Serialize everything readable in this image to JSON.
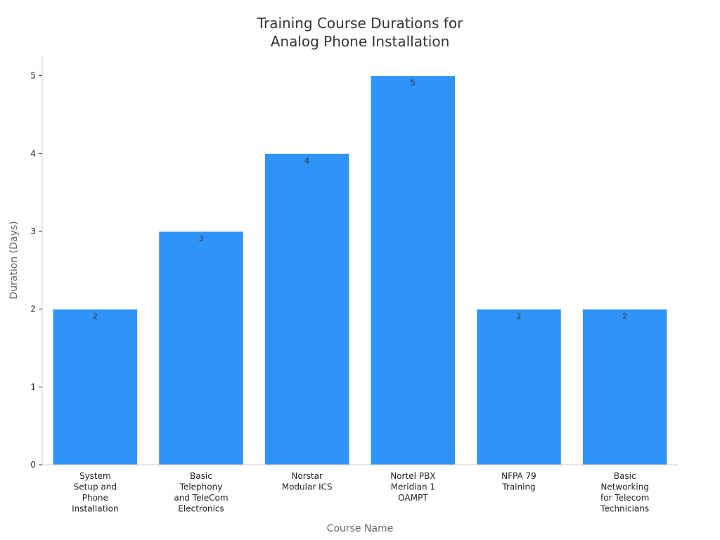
{
  "chart_data": {
    "type": "bar",
    "title": [
      "Training Course Durations for",
      "Analog Phone Installation"
    ],
    "xlabel": "Course Name",
    "ylabel": "Duration (Days)",
    "ylim": [
      0,
      5.25
    ],
    "yticks": [
      0,
      1,
      2,
      3,
      4,
      5
    ],
    "grid": false,
    "categories": [
      [
        "System",
        "Setup and",
        "Phone",
        "Installation"
      ],
      [
        "Basic",
        "Telephony",
        "and TeleCom",
        "Electronics"
      ],
      [
        "Norstar",
        "Modular ICS"
      ],
      [
        "Nortel PBX",
        "Meridian 1",
        "OAMPT"
      ],
      [
        "NFPA 79",
        "Training"
      ],
      [
        "Basic",
        "Networking",
        "for Telecom",
        "Technicians"
      ]
    ],
    "values": [
      2,
      3,
      4,
      5,
      2,
      2
    ],
    "bar_color": "#2f93f7",
    "axis_color": "#cccccc"
  }
}
